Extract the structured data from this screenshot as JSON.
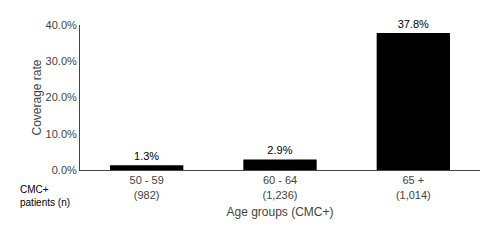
{
  "chart_data": {
    "type": "bar",
    "categories": [
      "50 - 59\n(982)",
      "60 - 64\n(1,236)",
      "65 +\n(1,014)"
    ],
    "values": [
      1.3,
      2.9,
      37.8
    ],
    "value_labels": [
      "1.3%",
      "2.9%",
      "37.8%"
    ],
    "data_labels": true,
    "color": "#000000",
    "xlabel": "Age groups (CMC+)",
    "ylabel": "Coverage rate",
    "annotations": [
      "CMC+\npatients (n)"
    ],
    "ylim": [
      0,
      40
    ],
    "yticks": [
      {
        "value": 0,
        "label": "0.0%"
      },
      {
        "value": 10,
        "label": "10.0%"
      },
      {
        "value": 20,
        "label": "20.0%"
      },
      {
        "value": 30,
        "label": "30.0%"
      },
      {
        "value": 40,
        "label": "40.0%"
      }
    ],
    "grid": false
  }
}
